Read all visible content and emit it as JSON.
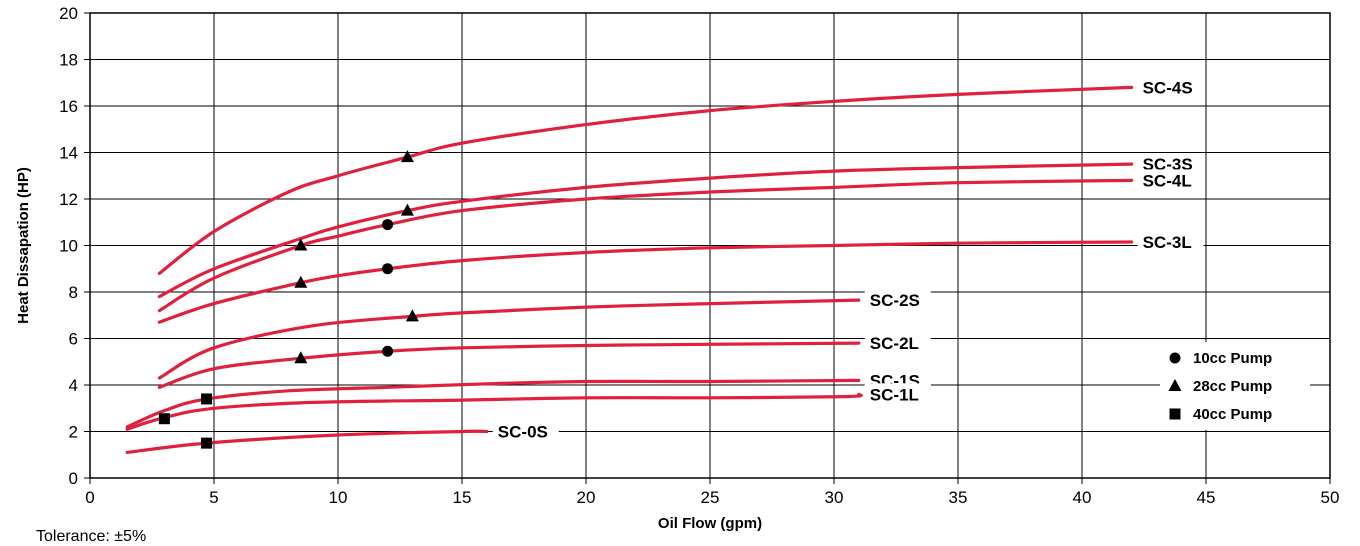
{
  "chart_data": {
    "type": "line",
    "title": "",
    "xlabel": "Oil Flow (gpm)",
    "ylabel": "Heat Dissapation (HP)",
    "xlim": [
      0,
      50
    ],
    "ylim": [
      0,
      20
    ],
    "xticks": [
      "0",
      "5",
      "10",
      "15",
      "20",
      "25",
      "30",
      "35",
      "40",
      "45",
      "50"
    ],
    "yticks": [
      "0",
      "2",
      "4",
      "6",
      "8",
      "10",
      "12",
      "14",
      "16",
      "18",
      "20"
    ],
    "grid": true,
    "line_color": "#e0213e",
    "series": [
      {
        "name": "SC-4S",
        "points": [
          [
            2.8,
            8.8
          ],
          [
            5,
            10.6
          ],
          [
            8,
            12.3
          ],
          [
            10,
            13.0
          ],
          [
            12.8,
            13.8
          ],
          [
            15,
            14.4
          ],
          [
            20,
            15.2
          ],
          [
            25,
            15.8
          ],
          [
            30,
            16.2
          ],
          [
            35,
            16.5
          ],
          [
            42,
            16.8
          ]
        ]
      },
      {
        "name": "SC-3S",
        "points": [
          [
            2.8,
            7.8
          ],
          [
            5,
            9.0
          ],
          [
            8.5,
            10.3
          ],
          [
            10,
            10.8
          ],
          [
            12.8,
            11.5
          ],
          [
            15,
            11.9
          ],
          [
            20,
            12.5
          ],
          [
            25,
            12.9
          ],
          [
            30,
            13.2
          ],
          [
            35,
            13.35
          ],
          [
            42,
            13.5
          ]
        ]
      },
      {
        "name": "SC-4L",
        "points": [
          [
            2.8,
            7.2
          ],
          [
            5,
            8.6
          ],
          [
            8.5,
            10.0
          ],
          [
            10,
            10.4
          ],
          [
            12,
            10.9
          ],
          [
            15,
            11.5
          ],
          [
            20,
            12.0
          ],
          [
            25,
            12.3
          ],
          [
            30,
            12.5
          ],
          [
            35,
            12.7
          ],
          [
            42,
            12.8
          ]
        ]
      },
      {
        "name": "SC-3L",
        "points": [
          [
            2.8,
            6.7
          ],
          [
            5,
            7.5
          ],
          [
            8.5,
            8.4
          ],
          [
            10,
            8.7
          ],
          [
            12,
            9.0
          ],
          [
            15,
            9.35
          ],
          [
            20,
            9.7
          ],
          [
            25,
            9.9
          ],
          [
            30,
            10.0
          ],
          [
            35,
            10.1
          ],
          [
            42,
            10.15
          ]
        ]
      },
      {
        "name": "SC-2S",
        "points": [
          [
            2.8,
            4.3
          ],
          [
            5,
            5.6
          ],
          [
            9,
            6.55
          ],
          [
            13,
            6.95
          ],
          [
            15,
            7.1
          ],
          [
            20,
            7.35
          ],
          [
            25,
            7.5
          ],
          [
            31,
            7.65
          ]
        ]
      },
      {
        "name": "SC-2L",
        "points": [
          [
            2.8,
            3.9
          ],
          [
            5,
            4.7
          ],
          [
            8.5,
            5.15
          ],
          [
            12,
            5.45
          ],
          [
            15,
            5.6
          ],
          [
            20,
            5.7
          ],
          [
            25,
            5.75
          ],
          [
            31,
            5.8
          ]
        ]
      },
      {
        "name": "SC-1S",
        "points": [
          [
            1.5,
            2.2
          ],
          [
            3,
            2.9
          ],
          [
            4.7,
            3.4
          ],
          [
            8,
            3.75
          ],
          [
            12,
            3.9
          ],
          [
            16,
            4.05
          ],
          [
            20,
            4.15
          ],
          [
            25,
            4.15
          ],
          [
            31,
            4.2
          ]
        ]
      },
      {
        "name": "SC-1L",
        "points": [
          [
            1.5,
            2.1
          ],
          [
            3,
            2.6
          ],
          [
            5,
            3.0
          ],
          [
            9,
            3.25
          ],
          [
            15,
            3.35
          ],
          [
            20,
            3.45
          ],
          [
            25,
            3.45
          ],
          [
            30.5,
            3.5
          ],
          [
            31,
            3.6
          ]
        ]
      },
      {
        "name": "SC-0S",
        "points": [
          [
            1.5,
            1.1
          ],
          [
            4.7,
            1.5
          ],
          [
            10,
            1.85
          ],
          [
            15,
            2.0
          ],
          [
            16,
            2.0
          ]
        ]
      }
    ],
    "markers": [
      {
        "shape": "triangle",
        "x": 12.8,
        "y": 13.8
      },
      {
        "shape": "triangle",
        "x": 12.8,
        "y": 11.5
      },
      {
        "shape": "triangle",
        "x": 8.5,
        "y": 10.0
      },
      {
        "shape": "triangle",
        "x": 8.5,
        "y": 8.4
      },
      {
        "shape": "triangle",
        "x": 13.0,
        "y": 6.95
      },
      {
        "shape": "triangle",
        "x": 8.5,
        "y": 5.15
      },
      {
        "shape": "circle",
        "x": 12.0,
        "y": 10.9
      },
      {
        "shape": "circle",
        "x": 12.0,
        "y": 9.0
      },
      {
        "shape": "circle",
        "x": 12.0,
        "y": 5.45
      },
      {
        "shape": "square",
        "x": 4.7,
        "y": 3.4
      },
      {
        "shape": "square",
        "x": 3.0,
        "y": 2.55
      },
      {
        "shape": "square",
        "x": 4.7,
        "y": 1.5
      }
    ],
    "legend": {
      "placement": "right",
      "items": [
        {
          "shape": "circle",
          "label": "10cc Pump"
        },
        {
          "shape": "triangle",
          "label": "28cc Pump"
        },
        {
          "shape": "square",
          "label": "40cc Pump"
        }
      ]
    },
    "note": "Tolerance: ±5%"
  }
}
